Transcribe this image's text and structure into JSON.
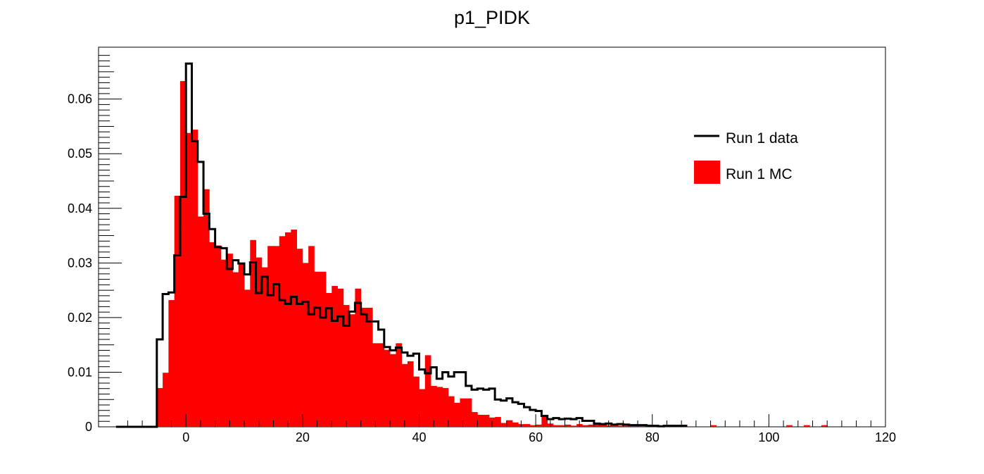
{
  "chart_data": {
    "type": "histogram",
    "title": "p1_PIDK",
    "xlabel": "",
    "ylabel": "",
    "xlim": [
      -15,
      120
    ],
    "ylim": [
      0,
      0.0695
    ],
    "bin_start": -12,
    "bin_width": 1,
    "x_ticks": [
      0,
      20,
      40,
      60,
      80,
      100,
      120
    ],
    "y_ticks": [
      0,
      0.01,
      0.02,
      0.03,
      0.04,
      0.05,
      0.06
    ],
    "y_tick_labels": [
      "0",
      "0.01",
      "0.02",
      "0.03",
      "0.04",
      "0.05",
      "0.06"
    ],
    "legend_position": "top-right",
    "series": [
      {
        "name": "Run 1 data",
        "style": "step",
        "color": "#000000",
        "values": [
          0,
          0,
          0,
          0,
          0,
          0,
          0,
          0.016,
          0.0243,
          0.0246,
          0.0314,
          0.0421,
          0.0665,
          0.0523,
          0.0485,
          0.039,
          0.0362,
          0.0329,
          0.0327,
          0.0289,
          0.0305,
          0.0299,
          0.0279,
          0.0301,
          0.0245,
          0.0275,
          0.0241,
          0.0261,
          0.0232,
          0.0225,
          0.0238,
          0.0225,
          0.0229,
          0.0206,
          0.0218,
          0.02,
          0.0217,
          0.0194,
          0.0202,
          0.0185,
          0.0211,
          0.0227,
          0.0206,
          0.0193,
          0.0193,
          0.0178,
          0.0146,
          0.014,
          0.0145,
          0.0136,
          0.013,
          0.0134,
          0.0105,
          0.0098,
          0.0109,
          0.0088,
          0.01,
          0.0092,
          0.01,
          0.01,
          0.0075,
          0.0068,
          0.007,
          0.0068,
          0.007,
          0.005,
          0.0048,
          0.0052,
          0.0045,
          0.0042,
          0.0036,
          0.0031,
          0.0029,
          0.002,
          0.0014,
          0.0016,
          0.0014,
          0.0015,
          0.0014,
          0.0016,
          0.0011,
          0.0011,
          0.0006,
          0.0005,
          0.0006,
          0.0004,
          0.0005,
          0.0004,
          0.0003,
          0.0003,
          0.0003,
          0.0002,
          0.0002,
          0.0001,
          0.0002,
          0.0002,
          0.0002,
          0.0002
        ]
      },
      {
        "name": "Run 1 MC",
        "style": "filled",
        "color": "#ff0000",
        "values": [
          0,
          0,
          0,
          0,
          0,
          0,
          0,
          0.0071,
          0.0099,
          0.0232,
          0.0423,
          0.0633,
          0.0538,
          0.0544,
          0.0385,
          0.0435,
          0.0338,
          0.0332,
          0.0306,
          0.0317,
          0.0283,
          0.03,
          0.0251,
          0.0342,
          0.031,
          0.0292,
          0.0331,
          0.0331,
          0.0349,
          0.0356,
          0.0361,
          0.0326,
          0.03,
          0.0331,
          0.0284,
          0.0284,
          0.0245,
          0.0258,
          0.0253,
          0.0223,
          0.0206,
          0.0253,
          0.0218,
          0.0218,
          0.0153,
          0.0153,
          0.0141,
          0.0133,
          0.0153,
          0.0115,
          0.012,
          0.0092,
          0.0069,
          0.0131,
          0.0075,
          0.0073,
          0.0071,
          0.0056,
          0.0044,
          0.0052,
          0.0052,
          0.0027,
          0.0022,
          0.0022,
          0.0017,
          0.0018,
          0.0007,
          0.0012,
          0.0008,
          0.0005,
          0.0005,
          0.0003,
          0.0004,
          0.002,
          0.0006,
          0.0003,
          0.0003,
          0.0004,
          0.0002,
          0.0005,
          0.0003,
          0.0004,
          0.0005,
          0.0005,
          0.0003,
          0.0002,
          0.0002,
          0.0002,
          0.0004,
          0.0004,
          0.0004,
          0.0004,
          0.0003,
          0.0001,
          0.0001,
          0.0001,
          0.0001,
          0.0001,
          0,
          0,
          0,
          0,
          0.0003,
          0,
          0,
          0,
          0,
          0,
          0,
          0,
          0,
          0,
          0,
          0,
          0,
          0.0003,
          0,
          0,
          0.0003,
          0,
          0,
          0.0003
        ]
      }
    ]
  }
}
